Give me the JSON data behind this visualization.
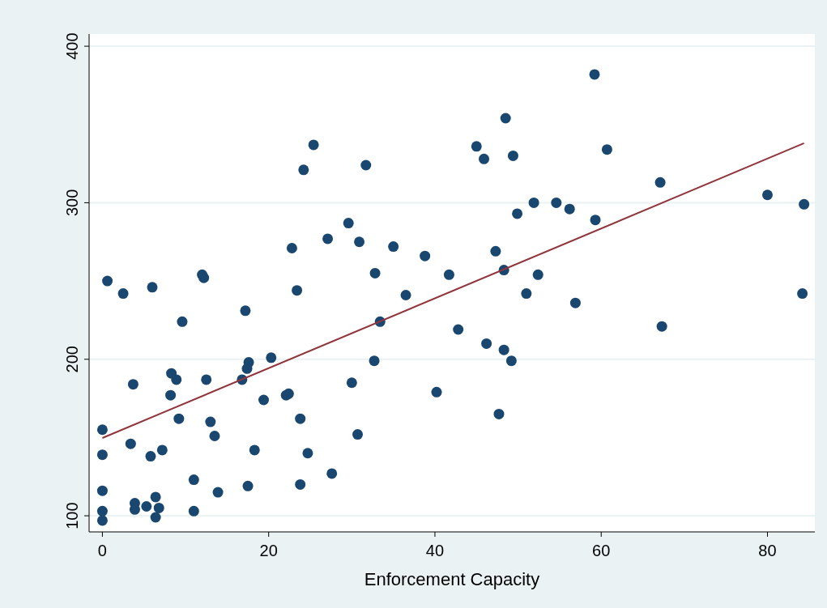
{
  "chart_data": {
    "type": "scatter",
    "xlabel": "Enforcement Capacity",
    "xlim": [
      -1.6,
      85.7
    ],
    "ylim": [
      89.7,
      407.8
    ],
    "xticks": [
      0,
      20,
      40,
      60,
      80
    ],
    "yticks": [
      100,
      200,
      300,
      400
    ],
    "grid": "y",
    "series": [
      {
        "marker": "circle",
        "color": "#1a476f",
        "x": [
          0,
          0,
          0,
          0,
          0,
          0.6,
          2.5,
          3.4,
          3.7,
          3.9,
          3.9,
          5.3,
          5.8,
          6.0,
          6.4,
          6.4,
          6.8,
          7.2,
          8.2,
          8.3,
          8.9,
          9.2,
          9.6,
          11.0,
          11.0,
          12.0,
          12.2,
          12.5,
          13.0,
          13.5,
          13.9,
          16.8,
          17.2,
          17.4,
          17.6,
          17.5,
          18.3,
          19.4,
          20.3,
          22.1,
          22.4,
          22.8,
          23.4,
          23.8,
          23.8,
          24.2,
          24.7,
          25.4,
          27.1,
          27.6,
          29.6,
          30.0,
          30.7,
          30.9,
          31.7,
          32.7,
          32.8,
          33.4,
          35.0,
          36.5,
          38.8,
          40.2,
          41.7,
          42.8,
          45.0,
          45.9,
          46.2,
          47.3,
          47.7,
          48.3,
          48.3,
          48.5,
          49.2,
          49.4,
          49.9,
          51.0,
          51.9,
          52.4,
          54.6,
          56.2,
          56.9,
          59.2,
          59.3,
          60.7,
          67.1,
          67.3,
          80.0,
          84.2,
          84.4
        ],
        "values": [
          155,
          139,
          116,
          103,
          97,
          250,
          242,
          146,
          184,
          108,
          104,
          106,
          138,
          246,
          112,
          99,
          105,
          142,
          177,
          191,
          187,
          162,
          224,
          123,
          103,
          254,
          252,
          187,
          160,
          151,
          115,
          187,
          231,
          194,
          198,
          119,
          142,
          174,
          201,
          177,
          178,
          271,
          244,
          162,
          120,
          321,
          140,
          337,
          277,
          127,
          287,
          185,
          152,
          275,
          324,
          199,
          255,
          224,
          272,
          241,
          266,
          179,
          254,
          219,
          336,
          328,
          210,
          269,
          165,
          257,
          206,
          354,
          199,
          330,
          293,
          242,
          300,
          254,
          300,
          296,
          236,
          382,
          289,
          334,
          313,
          221,
          305,
          242,
          299
        ]
      },
      {
        "type": "line",
        "color": "#90353b",
        "x": [
          0,
          84.4
        ],
        "values": [
          149.7,
          338
        ]
      }
    ]
  }
}
